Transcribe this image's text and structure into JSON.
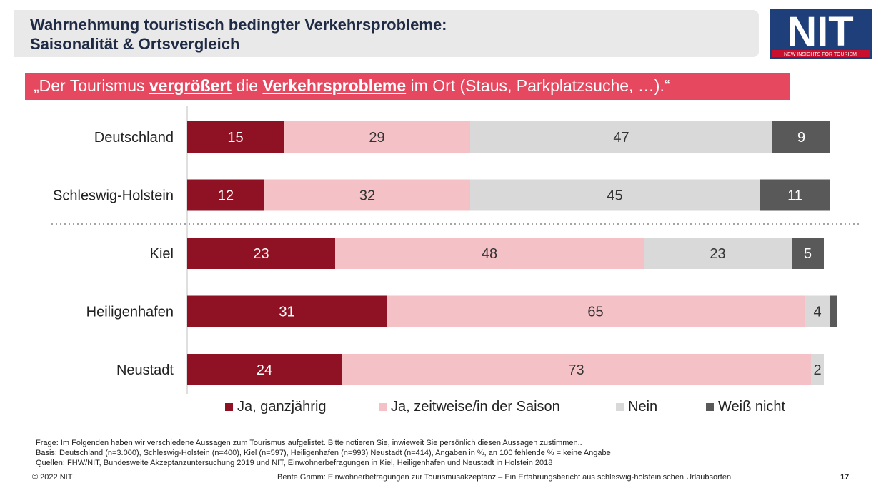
{
  "header": {
    "title_line1": "Wahrnehmung touristisch bedingter Verkehrsprobleme:",
    "title_line2": "Saisonalität & Ortsvergleich"
  },
  "logo": {
    "text": "NIT",
    "tagline": "NEW INSIGHTS FOR TOURISM",
    "colors": {
      "background": "#1e3f7a",
      "tagline_bg": "#c8102e"
    }
  },
  "quote": {
    "part1": "„Der Tourismus ",
    "bold1": "vergrößert",
    "part2": " die ",
    "bold2": "Verkehrsprobleme",
    "part3": " im Ort (Staus, Parkplatzsuche, …).“"
  },
  "chart_data": {
    "type": "bar",
    "orientation": "horizontal",
    "stacked": true,
    "categories": [
      "Deutschland",
      "Schleswig-Holstein",
      "Kiel",
      "Heiligenhafen",
      "Neustadt"
    ],
    "series": [
      {
        "name": "Ja, ganzjährig",
        "color": "#8e1224",
        "values": [
          15,
          12,
          23,
          31,
          24
        ]
      },
      {
        "name": "Ja, zeitweise/in der Saison",
        "color": "#f4c1c6",
        "values": [
          29,
          32,
          48,
          65,
          73
        ]
      },
      {
        "name": "Nein",
        "color": "#d9d9d9",
        "values": [
          47,
          45,
          23,
          4,
          2
        ]
      },
      {
        "name": "Weiß nicht",
        "color": "#595959",
        "values": [
          9,
          11,
          5,
          1,
          0
        ]
      }
    ],
    "data_labels": [
      [
        "15",
        "29",
        "47",
        "9"
      ],
      [
        "12",
        "32",
        "45",
        "11"
      ],
      [
        "23",
        "48",
        "23",
        "5"
      ],
      [
        "31",
        "65",
        "4",
        ""
      ],
      [
        "24",
        "73",
        "2",
        ""
      ]
    ],
    "separator_after_index": 1,
    "legend_position": "bottom",
    "xlim": [
      0,
      100
    ],
    "grid": false
  },
  "footer": {
    "frage": "Frage: Im Folgenden haben wir verschiedene Aussagen zum Tourismus aufgelistet. Bitte notieren Sie, inwieweit Sie persönlich diesen Aussagen zustimmen..",
    "basis": "Basis: Deutschland (n=3.000), Schleswig-Holstein (n=400), Kiel (n=597), Heiligenhafen (n=993) Neustadt (n=414), Angaben in %, an 100 fehlende % = keine Angabe",
    "quellen": "Quellen: FHW/NIT, Bundesweite Akzeptanzuntersuchung 2019 und NIT, Einwohnerbefragungen in Kiel, Heiligenhafen und Neustadt in Holstein 2018",
    "copyright": "© 2022 NIT",
    "presenter": "Bente Grimm: Einwohnerbefragungen zur Tourismusakzeptanz – Ein Erfahrungsbericht aus schleswig-holsteinischen Urlaubsorten",
    "page": "17"
  }
}
